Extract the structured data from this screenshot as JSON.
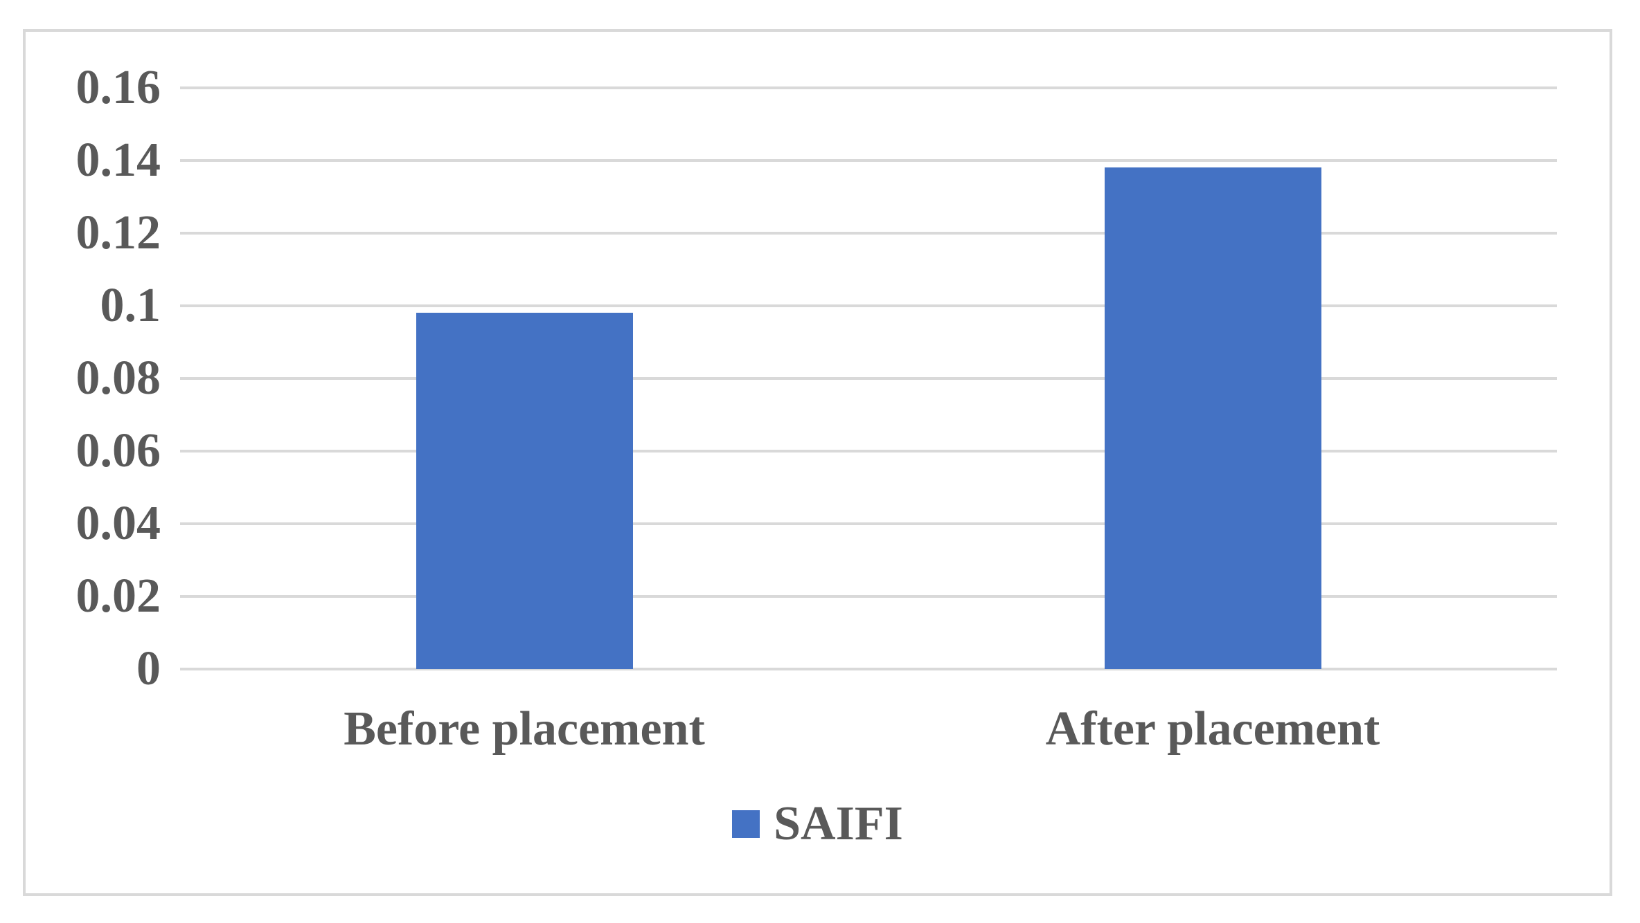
{
  "chart_data": {
    "type": "bar",
    "categories": [
      "Before placement",
      "After placement"
    ],
    "series": [
      {
        "name": "SAIFI",
        "values": [
          0.098,
          0.138
        ]
      }
    ],
    "title": "",
    "xlabel": "",
    "ylabel": "",
    "ylim": [
      0,
      0.16
    ],
    "ytick_step": 0.02,
    "yticks": [
      "0.16",
      "0.14",
      "0.12",
      "0.1",
      "0.08",
      "0.06",
      "0.04",
      "0.02",
      "0"
    ],
    "grid": true,
    "legend_position": "bottom-center",
    "bar_width_ratio": 0.315
  },
  "legend": {
    "label": "SAIFI"
  },
  "colors": {
    "bar": "#4472C4",
    "grid": "#D9D9D9",
    "frame_border": "#D9D9D9",
    "text": "#595959",
    "background": "#FFFFFF"
  }
}
